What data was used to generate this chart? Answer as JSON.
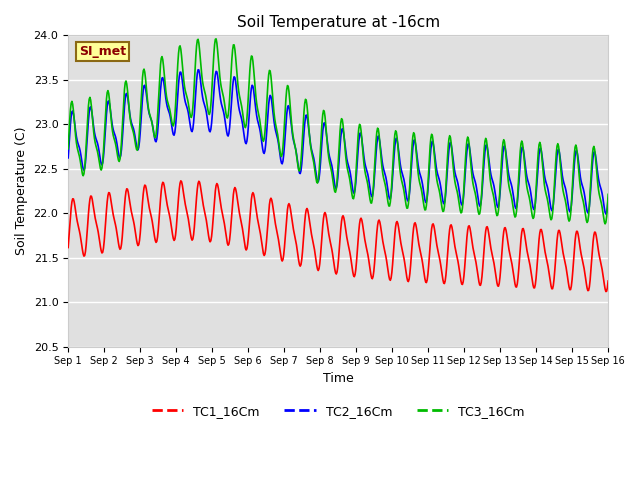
{
  "title": "Soil Temperature at -16cm",
  "xlabel": "Time",
  "ylabel": "Soil Temperature (C)",
  "ylim": [
    20.5,
    24.0
  ],
  "xlim_days": [
    0,
    15
  ],
  "background_color": "#e0e0e0",
  "fig_bg_color": "#ffffff",
  "grid_color": "#ffffff",
  "label_box_text": "SI_met",
  "label_box_facecolor": "#ffff99",
  "label_box_edgecolor": "#8b6914",
  "label_box_textcolor": "#8b0000",
  "tc1_color": "#ff0000",
  "tc2_color": "#0000ff",
  "tc3_color": "#00bb00",
  "tc1_label": "TC1_16Cm",
  "tc2_label": "TC2_16Cm",
  "tc3_label": "TC3_16Cm",
  "xtick_labels": [
    "Sep 1",
    "Sep 2",
    "Sep 3",
    "Sep 4",
    "Sep 5",
    "Sep 6",
    "Sep 7",
    "Sep 8",
    "Sep 9",
    "Sep 10",
    "Sep 11",
    "Sep 12",
    "Sep 13",
    "Sep 14",
    "Sep 15",
    "Sep 16"
  ]
}
